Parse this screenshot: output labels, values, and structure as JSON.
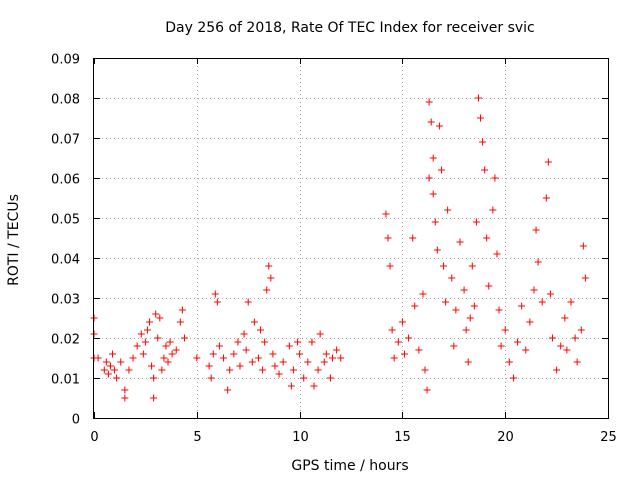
{
  "chart_data": {
    "type": "scatter",
    "title": "Day 256 of 2018, Rate Of TEC Index for receiver svic",
    "xlabel": "GPS time / hours",
    "ylabel": "ROTI / TECUs",
    "xlim": [
      0,
      25
    ],
    "ylim": [
      0,
      0.09
    ],
    "xticks": [
      0,
      5,
      10,
      15,
      20,
      25
    ],
    "xtick_labels": [
      "0",
      "5",
      "10",
      "15",
      "20",
      "25"
    ],
    "yticks": [
      0,
      0.01,
      0.02,
      0.03,
      0.04,
      0.05,
      0.06,
      0.07,
      0.08,
      0.09
    ],
    "ytick_labels": [
      "0",
      "0.01",
      "0.02",
      "0.03",
      "0.04",
      "0.05",
      "0.06",
      "0.07",
      "0.08",
      "0.09"
    ],
    "grid": true,
    "marker": "+",
    "color": "#ff0000",
    "series": [
      {
        "name": "ROTI",
        "points": [
          [
            0.0,
            0.025
          ],
          [
            0.0,
            0.021
          ],
          [
            0.0,
            0.015
          ],
          [
            0.2,
            0.015
          ],
          [
            0.5,
            0.012
          ],
          [
            0.6,
            0.014
          ],
          [
            0.7,
            0.011
          ],
          [
            0.8,
            0.013
          ],
          [
            0.9,
            0.016
          ],
          [
            1.0,
            0.012
          ],
          [
            1.1,
            0.01
          ],
          [
            1.3,
            0.014
          ],
          [
            1.5,
            0.007
          ],
          [
            1.5,
            0.005
          ],
          [
            1.7,
            0.012
          ],
          [
            1.9,
            0.015
          ],
          [
            2.1,
            0.018
          ],
          [
            2.3,
            0.021
          ],
          [
            2.4,
            0.016
          ],
          [
            2.5,
            0.019
          ],
          [
            2.6,
            0.022
          ],
          [
            2.7,
            0.024
          ],
          [
            2.8,
            0.013
          ],
          [
            2.9,
            0.01
          ],
          [
            2.9,
            0.005
          ],
          [
            3.0,
            0.026
          ],
          [
            3.1,
            0.02
          ],
          [
            3.2,
            0.025
          ],
          [
            3.3,
            0.012
          ],
          [
            3.4,
            0.015
          ],
          [
            3.5,
            0.018
          ],
          [
            3.6,
            0.014
          ],
          [
            3.7,
            0.019
          ],
          [
            3.8,
            0.016
          ],
          [
            4.0,
            0.017
          ],
          [
            4.2,
            0.024
          ],
          [
            4.3,
            0.027
          ],
          [
            4.4,
            0.02
          ],
          [
            5.0,
            0.015
          ],
          [
            5.6,
            0.013
          ],
          [
            5.7,
            0.01
          ],
          [
            5.8,
            0.016
          ],
          [
            5.9,
            0.031
          ],
          [
            6.0,
            0.029
          ],
          [
            6.1,
            0.018
          ],
          [
            6.3,
            0.015
          ],
          [
            6.5,
            0.007
          ],
          [
            6.6,
            0.012
          ],
          [
            6.8,
            0.016
          ],
          [
            7.0,
            0.019
          ],
          [
            7.1,
            0.013
          ],
          [
            7.3,
            0.021
          ],
          [
            7.4,
            0.017
          ],
          [
            7.5,
            0.029
          ],
          [
            7.7,
            0.014
          ],
          [
            7.8,
            0.024
          ],
          [
            8.0,
            0.015
          ],
          [
            8.1,
            0.022
          ],
          [
            8.2,
            0.012
          ],
          [
            8.3,
            0.019
          ],
          [
            8.4,
            0.032
          ],
          [
            8.5,
            0.038
          ],
          [
            8.6,
            0.035
          ],
          [
            8.7,
            0.016
          ],
          [
            8.8,
            0.013
          ],
          [
            9.0,
            0.011
          ],
          [
            9.2,
            0.014
          ],
          [
            9.5,
            0.018
          ],
          [
            9.6,
            0.008
          ],
          [
            9.7,
            0.012
          ],
          [
            9.9,
            0.019
          ],
          [
            10.0,
            0.016
          ],
          [
            10.2,
            0.01
          ],
          [
            10.4,
            0.014
          ],
          [
            10.6,
            0.019
          ],
          [
            10.7,
            0.008
          ],
          [
            10.9,
            0.012
          ],
          [
            11.0,
            0.021
          ],
          [
            11.2,
            0.014
          ],
          [
            11.3,
            0.016
          ],
          [
            11.5,
            0.01
          ],
          [
            11.6,
            0.015
          ],
          [
            11.8,
            0.017
          ],
          [
            12.0,
            0.015
          ],
          [
            14.2,
            0.051
          ],
          [
            14.3,
            0.045
          ],
          [
            14.4,
            0.038
          ],
          [
            14.5,
            0.022
          ],
          [
            14.6,
            0.015
          ],
          [
            14.8,
            0.019
          ],
          [
            15.0,
            0.024
          ],
          [
            15.1,
            0.016
          ],
          [
            15.3,
            0.02
          ],
          [
            15.5,
            0.045
          ],
          [
            15.6,
            0.028
          ],
          [
            15.8,
            0.017
          ],
          [
            16.0,
            0.031
          ],
          [
            16.1,
            0.012
          ],
          [
            16.2,
            0.007
          ],
          [
            16.3,
            0.06
          ],
          [
            16.3,
            0.079
          ],
          [
            16.4,
            0.074
          ],
          [
            16.5,
            0.056
          ],
          [
            16.5,
            0.065
          ],
          [
            16.6,
            0.049
          ],
          [
            16.7,
            0.042
          ],
          [
            16.8,
            0.073
          ],
          [
            16.9,
            0.062
          ],
          [
            17.0,
            0.038
          ],
          [
            17.1,
            0.029
          ],
          [
            17.2,
            0.052
          ],
          [
            17.4,
            0.035
          ],
          [
            17.5,
            0.018
          ],
          [
            17.6,
            0.027
          ],
          [
            17.8,
            0.044
          ],
          [
            18.0,
            0.032
          ],
          [
            18.1,
            0.022
          ],
          [
            18.2,
            0.014
          ],
          [
            18.3,
            0.025
          ],
          [
            18.4,
            0.038
          ],
          [
            18.5,
            0.028
          ],
          [
            18.6,
            0.049
          ],
          [
            18.7,
            0.08
          ],
          [
            18.8,
            0.075
          ],
          [
            18.9,
            0.069
          ],
          [
            19.0,
            0.062
          ],
          [
            19.1,
            0.045
          ],
          [
            19.2,
            0.033
          ],
          [
            19.4,
            0.052
          ],
          [
            19.5,
            0.06
          ],
          [
            19.6,
            0.041
          ],
          [
            19.7,
            0.027
          ],
          [
            19.8,
            0.018
          ],
          [
            20.0,
            0.022
          ],
          [
            20.2,
            0.014
          ],
          [
            20.4,
            0.01
          ],
          [
            20.6,
            0.019
          ],
          [
            20.8,
            0.028
          ],
          [
            21.0,
            0.017
          ],
          [
            21.2,
            0.024
          ],
          [
            21.4,
            0.032
          ],
          [
            21.5,
            0.047
          ],
          [
            21.6,
            0.039
          ],
          [
            21.8,
            0.029
          ],
          [
            22.0,
            0.055
          ],
          [
            22.1,
            0.064
          ],
          [
            22.2,
            0.031
          ],
          [
            22.3,
            0.02
          ],
          [
            22.5,
            0.012
          ],
          [
            22.7,
            0.018
          ],
          [
            22.9,
            0.025
          ],
          [
            23.0,
            0.017
          ],
          [
            23.2,
            0.029
          ],
          [
            23.4,
            0.02
          ],
          [
            23.5,
            0.014
          ],
          [
            23.7,
            0.022
          ],
          [
            23.8,
            0.043
          ],
          [
            23.9,
            0.035
          ]
        ]
      }
    ]
  }
}
